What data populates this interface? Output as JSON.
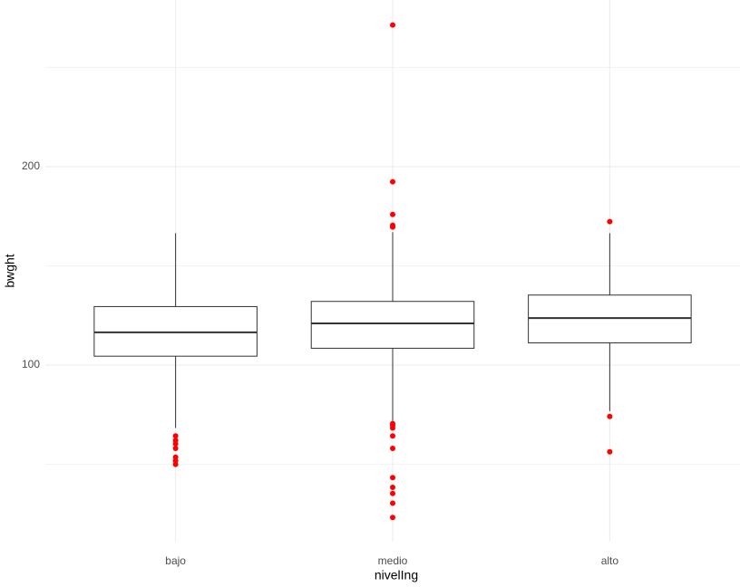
{
  "chart_data": {
    "type": "boxplot",
    "x_label": "nivelIng",
    "y_label": "bwght",
    "categories": [
      "bajo",
      "medio",
      "alto"
    ],
    "boxes": [
      {
        "min": 68.3,
        "q1": 104.5,
        "median": 116.5,
        "q3": 129.5,
        "max": 166.5,
        "outliers": [
          64.3,
          62.1,
          60.3,
          58.0,
          53.6,
          51.8,
          50.0
        ]
      },
      {
        "min": 71.9,
        "q1": 108.5,
        "median": 121.0,
        "q3": 132.1,
        "max": 167.0,
        "outliers": [
          170.5,
          169.6,
          175.9,
          192.4,
          271.4,
          70.5,
          69.6,
          68.3,
          64.3,
          58.0,
          43.3,
          38.4,
          35.3,
          30.4,
          23.2
        ]
      },
      {
        "min": 76.8,
        "q1": 111.2,
        "median": 123.7,
        "q3": 135.3,
        "max": 166.5,
        "outliers": [
          172.3,
          74.1,
          56.3
        ]
      }
    ],
    "box_color": "#333333",
    "outlier_color": "#ff0000",
    "ylim": [
      11,
      284
    ],
    "yticks": [
      100,
      200
    ],
    "minor_grid": [
      50,
      150,
      250
    ],
    "grid": true
  }
}
